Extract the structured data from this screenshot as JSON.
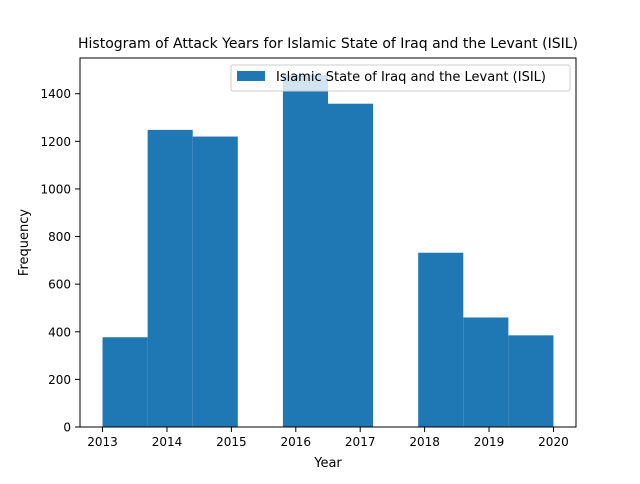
{
  "chart_data": {
    "type": "bar",
    "title": "Histogram of Attack Years for Islamic State of Iraq and the Levant (ISIL)",
    "xlabel": "Year",
    "ylabel": "Frequency",
    "x_ticks": [
      "2013",
      "2014",
      "2015",
      "2016",
      "2017",
      "2018",
      "2019",
      "2020"
    ],
    "y_ticks": [
      "0",
      "200",
      "400",
      "600",
      "800",
      "1000",
      "1200",
      "1400"
    ],
    "xlim": [
      2012.65,
      2020.35
    ],
    "ylim": [
      0,
      1550
    ],
    "legend_position": "top-right",
    "grid": false,
    "bar_color": "#1f77b4",
    "series": [
      {
        "name": "Islamic State of Iraq and the Levant (ISIL)",
        "bins": [
          {
            "start": 2013.0,
            "end": 2013.7,
            "value": 377
          },
          {
            "start": 2013.7,
            "end": 2014.4,
            "value": 1248
          },
          {
            "start": 2014.4,
            "end": 2015.1,
            "value": 1220
          },
          {
            "start": 2015.1,
            "end": 2015.8,
            "value": 0
          },
          {
            "start": 2015.8,
            "end": 2016.5,
            "value": 1480
          },
          {
            "start": 2016.5,
            "end": 2017.2,
            "value": 1358
          },
          {
            "start": 2017.2,
            "end": 2017.9,
            "value": 0
          },
          {
            "start": 2017.9,
            "end": 2018.6,
            "value": 732
          },
          {
            "start": 2018.6,
            "end": 2019.3,
            "value": 460
          },
          {
            "start": 2019.3,
            "end": 2020.0,
            "value": 385
          }
        ]
      }
    ]
  }
}
